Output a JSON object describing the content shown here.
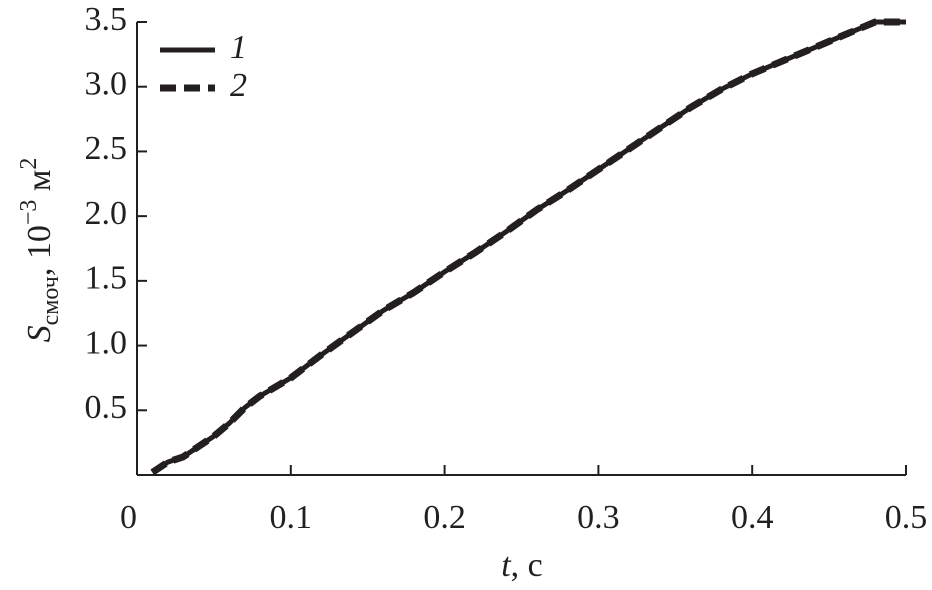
{
  "chart_data": {
    "type": "line",
    "x_label": {
      "symbol": "t",
      "rest": ", с"
    },
    "y_label": {
      "symbol": "S",
      "subscript": "смоч",
      "rest": ", 10",
      "exponent": "−3",
      "unit": " м",
      "unit_exponent": "2"
    },
    "x": [
      0.01,
      0.02,
      0.03,
      0.04,
      0.05,
      0.06,
      0.07,
      0.08,
      0.09,
      0.1,
      0.12,
      0.14,
      0.16,
      0.18,
      0.2,
      0.22,
      0.24,
      0.26,
      0.28,
      0.3,
      0.32,
      0.34,
      0.36,
      0.38,
      0.4,
      0.42,
      0.44,
      0.46,
      0.48,
      0.5
    ],
    "series": [
      {
        "name": "1",
        "color": "#231f20",
        "dash": "solid",
        "values": [
          0.02,
          0.1,
          0.14,
          0.22,
          0.3,
          0.4,
          0.52,
          0.61,
          0.68,
          0.75,
          0.93,
          1.1,
          1.27,
          1.41,
          1.57,
          1.72,
          1.88,
          2.05,
          2.2,
          2.36,
          2.52,
          2.68,
          2.84,
          2.98,
          3.1,
          3.2,
          3.3,
          3.4,
          3.5,
          3.5
        ]
      },
      {
        "name": "2",
        "color": "#231f20",
        "dash": "dashed",
        "values": [
          0.02,
          0.1,
          0.14,
          0.22,
          0.3,
          0.4,
          0.52,
          0.61,
          0.68,
          0.75,
          0.93,
          1.1,
          1.27,
          1.41,
          1.57,
          1.72,
          1.88,
          2.05,
          2.2,
          2.36,
          2.52,
          2.68,
          2.84,
          2.98,
          3.1,
          3.2,
          3.3,
          3.4,
          3.5,
          3.5
        ]
      }
    ],
    "xlim": [
      0,
      0.5
    ],
    "xticks": [
      0,
      0.1,
      0.2,
      0.3,
      0.4,
      0.5
    ],
    "ylim": [
      0,
      3.5
    ],
    "yticks": [
      0.5,
      {
        "value": 1,
        "label": "1.0"
      },
      1.5,
      {
        "value": 2,
        "label": "2.0"
      },
      2.5,
      {
        "value": 3,
        "label": "3.0"
      },
      3.5
    ],
    "legend": "top-left",
    "grid": false
  }
}
